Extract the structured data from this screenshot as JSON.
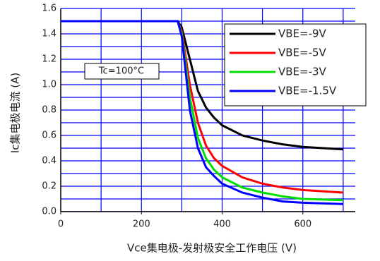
{
  "chart_data": {
    "type": "line",
    "x_label": "Vce集电极-发射极安全工作电压 (V)",
    "y_label": "Ic集电极电流 (A)",
    "annotation": "Tc=100°C",
    "x": [
      0,
      290,
      300,
      320,
      340,
      360,
      380,
      400,
      450,
      500,
      550,
      600,
      700
    ],
    "series": [
      {
        "name": "VBE=-9V",
        "color": "#000000",
        "values": [
          1.5,
          1.5,
          1.45,
          1.2,
          0.95,
          0.82,
          0.74,
          0.68,
          0.6,
          0.56,
          0.53,
          0.51,
          0.49
        ]
      },
      {
        "name": "VBE=-5V",
        "color": "#ff0000",
        "values": [
          1.5,
          1.5,
          1.42,
          1.0,
          0.7,
          0.52,
          0.42,
          0.36,
          0.27,
          0.22,
          0.19,
          0.17,
          0.15
        ]
      },
      {
        "name": "VBE=-3V",
        "color": "#00e000",
        "values": [
          1.5,
          1.5,
          1.4,
          0.9,
          0.58,
          0.42,
          0.33,
          0.27,
          0.19,
          0.15,
          0.12,
          0.1,
          0.09
        ]
      },
      {
        "name": "VBE=-1.5V",
        "color": "#0000ff",
        "values": [
          1.5,
          1.5,
          1.38,
          0.8,
          0.5,
          0.35,
          0.28,
          0.22,
          0.15,
          0.11,
          0.08,
          0.07,
          0.06
        ]
      }
    ],
    "xlim": [
      0,
      730
    ],
    "ylim": [
      0,
      1.6
    ],
    "xticks": [
      0,
      200,
      400,
      600
    ],
    "xgrid": [
      100,
      200,
      300,
      400,
      500,
      600,
      700
    ],
    "yticks": [
      {
        "value": 0,
        "label": "0.0"
      },
      {
        "value": 0.2,
        "label": "0.2"
      },
      {
        "value": 0.4,
        "label": "0.4"
      },
      {
        "value": 0.6,
        "label": "0.6"
      },
      {
        "value": 0.8,
        "label": "0.8"
      },
      {
        "value": 1.0,
        "label": "1.0"
      },
      {
        "value": 1.2,
        "label": "1.2"
      },
      {
        "value": 1.4,
        "label": "1.4"
      },
      {
        "value": 1.6,
        "label": "1.6"
      }
    ],
    "ygrid": [
      0.1,
      0.3,
      0.5,
      0.7,
      0.9,
      1.1,
      1.3,
      1.5
    ],
    "grid_color": "#0000ff",
    "grid": true
  }
}
